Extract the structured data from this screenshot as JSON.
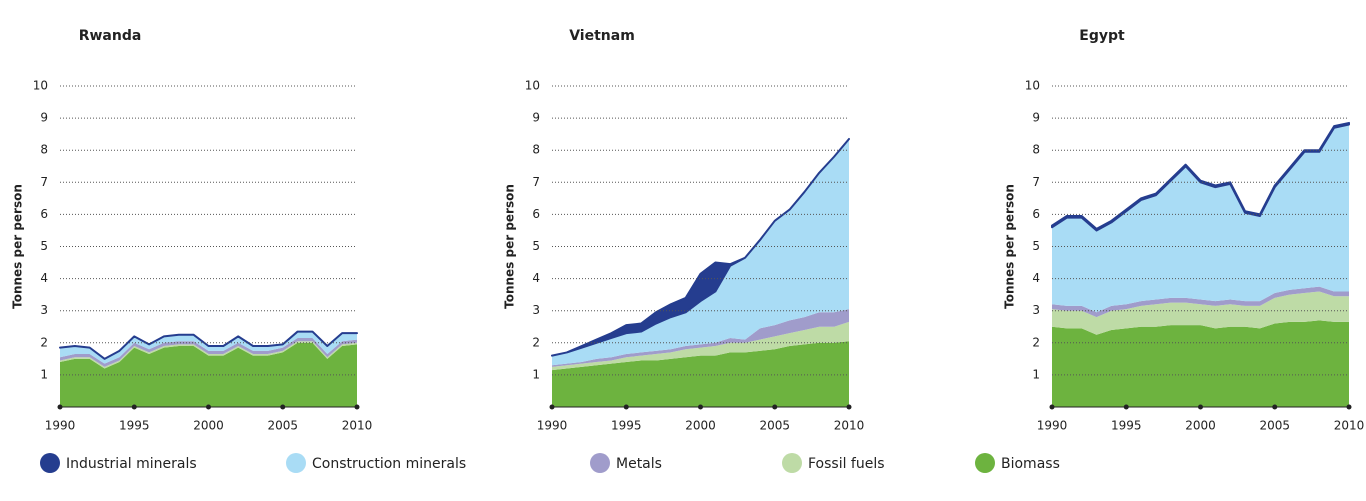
{
  "chart_data": [
    {
      "type": "area",
      "title": "Rwanda",
      "y_label": "Tonnes per person",
      "x": [
        1990,
        1991,
        1992,
        1993,
        1994,
        1995,
        1996,
        1997,
        1998,
        1999,
        2000,
        2001,
        2002,
        2003,
        2004,
        2005,
        2006,
        2007,
        2008,
        2009,
        2010
      ],
      "xlim": [
        1990,
        2010
      ],
      "xticks": [
        1990,
        1995,
        2000,
        2005,
        2010
      ],
      "ylim": [
        0,
        10
      ],
      "yticks": [
        1,
        2,
        3,
        4,
        5,
        6,
        7,
        8,
        9,
        10
      ],
      "grid": true,
      "series": [
        {
          "name": "Biomass",
          "color": "#6db33f",
          "values": [
            1.4,
            1.5,
            1.5,
            1.2,
            1.4,
            1.85,
            1.65,
            1.85,
            1.9,
            1.9,
            1.6,
            1.6,
            1.85,
            1.6,
            1.6,
            1.7,
            2.0,
            2.0,
            1.5,
            1.9,
            1.95
          ]
        },
        {
          "name": "Fossil fuels",
          "color": "#bedba6",
          "values": [
            0.05,
            0.05,
            0.05,
            0.05,
            0.05,
            0.05,
            0.05,
            0.05,
            0.05,
            0.05,
            0.05,
            0.05,
            0.05,
            0.05,
            0.05,
            0.05,
            0.05,
            0.05,
            0.05,
            0.05,
            0.05
          ]
        },
        {
          "name": "Metals",
          "color": "#a09ccb",
          "values": [
            0.1,
            0.1,
            0.1,
            0.1,
            0.1,
            0.1,
            0.1,
            0.1,
            0.1,
            0.1,
            0.1,
            0.1,
            0.1,
            0.1,
            0.1,
            0.1,
            0.1,
            0.1,
            0.1,
            0.1,
            0.1
          ]
        },
        {
          "name": "Construction minerals",
          "color": "#a9dcf5",
          "values": [
            0.3,
            0.25,
            0.2,
            0.15,
            0.2,
            0.2,
            0.15,
            0.2,
            0.2,
            0.2,
            0.15,
            0.15,
            0.2,
            0.15,
            0.15,
            0.1,
            0.2,
            0.2,
            0.25,
            0.25,
            0.2
          ]
        },
        {
          "name": "Industrial minerals",
          "color": "#253d8f",
          "values": [
            0,
            0,
            0,
            0,
            0,
            0,
            0,
            0,
            0,
            0,
            0,
            0,
            0,
            0,
            0,
            0,
            0,
            0,
            0,
            0,
            0
          ]
        }
      ]
    },
    {
      "type": "area",
      "title": "Vietnam",
      "y_label": "Tonnes per person",
      "x": [
        1990,
        1991,
        1992,
        1993,
        1994,
        1995,
        1996,
        1997,
        1998,
        1999,
        2000,
        2001,
        2002,
        2003,
        2004,
        2005,
        2006,
        2007,
        2008,
        2009,
        2010
      ],
      "xlim": [
        1990,
        2010
      ],
      "xticks": [
        1990,
        1995,
        2000,
        2005,
        2010
      ],
      "ylim": [
        0,
        10
      ],
      "yticks": [
        1,
        2,
        3,
        4,
        5,
        6,
        7,
        8,
        9,
        10
      ],
      "grid": true,
      "series": [
        {
          "name": "Biomass",
          "color": "#6db33f",
          "values": [
            1.15,
            1.2,
            1.25,
            1.3,
            1.35,
            1.4,
            1.45,
            1.45,
            1.5,
            1.55,
            1.6,
            1.6,
            1.7,
            1.7,
            1.75,
            1.8,
            1.9,
            1.95,
            2.0,
            2.0,
            2.05
          ]
        },
        {
          "name": "Fossil fuels",
          "color": "#bedba6",
          "values": [
            0.1,
            0.1,
            0.1,
            0.1,
            0.1,
            0.15,
            0.15,
            0.2,
            0.2,
            0.25,
            0.25,
            0.3,
            0.3,
            0.3,
            0.35,
            0.4,
            0.4,
            0.45,
            0.5,
            0.5,
            0.6
          ]
        },
        {
          "name": "Metals",
          "color": "#a09ccb",
          "values": [
            0.05,
            0.05,
            0.05,
            0.1,
            0.1,
            0.1,
            0.1,
            0.1,
            0.1,
            0.1,
            0.1,
            0.1,
            0.15,
            0.1,
            0.35,
            0.35,
            0.4,
            0.4,
            0.45,
            0.45,
            0.4
          ]
        },
        {
          "name": "Construction minerals",
          "color": "#a9dcf5",
          "values": [
            0.3,
            0.35,
            0.45,
            0.5,
            0.6,
            0.65,
            0.65,
            0.85,
            1.0,
            1.05,
            1.35,
            1.6,
            2.25,
            2.55,
            2.75,
            3.25,
            3.45,
            3.9,
            4.35,
            4.85,
            5.3
          ]
        },
        {
          "name": "Industrial minerals",
          "color": "#253d8f",
          "values": [
            0,
            0,
            0.05,
            0.1,
            0.15,
            0.25,
            0.25,
            0.35,
            0.4,
            0.45,
            0.85,
            0.9,
            0.05,
            0,
            0,
            0,
            0,
            0,
            0,
            0,
            0
          ]
        }
      ]
    },
    {
      "type": "area",
      "title": "Egypt",
      "y_label": "Tonnes per person",
      "x": [
        1990,
        1991,
        1992,
        1993,
        1994,
        1995,
        1996,
        1997,
        1998,
        1999,
        2000,
        2001,
        2002,
        2003,
        2004,
        2005,
        2006,
        2007,
        2008,
        2009,
        2010
      ],
      "xlim": [
        1990,
        2010
      ],
      "xticks": [
        1990,
        1995,
        2000,
        2005,
        2010
      ],
      "ylim": [
        0,
        10
      ],
      "yticks": [
        1,
        2,
        3,
        4,
        5,
        6,
        7,
        8,
        9,
        10
      ],
      "grid": true,
      "series": [
        {
          "name": "Biomass",
          "color": "#6db33f",
          "values": [
            2.5,
            2.45,
            2.45,
            2.25,
            2.4,
            2.45,
            2.5,
            2.5,
            2.55,
            2.55,
            2.55,
            2.45,
            2.5,
            2.5,
            2.45,
            2.6,
            2.65,
            2.65,
            2.7,
            2.65,
            2.65
          ]
        },
        {
          "name": "Fossil fuels",
          "color": "#bedba6",
          "values": [
            0.55,
            0.55,
            0.55,
            0.55,
            0.6,
            0.6,
            0.65,
            0.7,
            0.7,
            0.7,
            0.65,
            0.7,
            0.7,
            0.65,
            0.7,
            0.8,
            0.85,
            0.9,
            0.9,
            0.8,
            0.8
          ]
        },
        {
          "name": "Metals",
          "color": "#a09ccb",
          "values": [
            0.15,
            0.15,
            0.15,
            0.15,
            0.15,
            0.15,
            0.15,
            0.15,
            0.15,
            0.15,
            0.15,
            0.15,
            0.15,
            0.15,
            0.15,
            0.15,
            0.15,
            0.15,
            0.15,
            0.15,
            0.15
          ]
        },
        {
          "name": "Construction minerals",
          "color": "#a9dcf5",
          "values": [
            2.4,
            2.75,
            2.75,
            2.55,
            2.6,
            2.9,
            3.15,
            3.25,
            3.65,
            4.1,
            3.65,
            3.55,
            3.6,
            2.75,
            2.65,
            3.3,
            3.75,
            4.25,
            4.2,
            5.1,
            5.2
          ]
        },
        {
          "name": "Industrial minerals",
          "color": "#253d8f",
          "values": [
            0.05,
            0.05,
            0.05,
            0.05,
            0.05,
            0.05,
            0.05,
            0.05,
            0.05,
            0.05,
            0.05,
            0.05,
            0.05,
            0.05,
            0.05,
            0.05,
            0.05,
            0.05,
            0.05,
            0.05,
            0.05
          ]
        }
      ]
    }
  ]
}
